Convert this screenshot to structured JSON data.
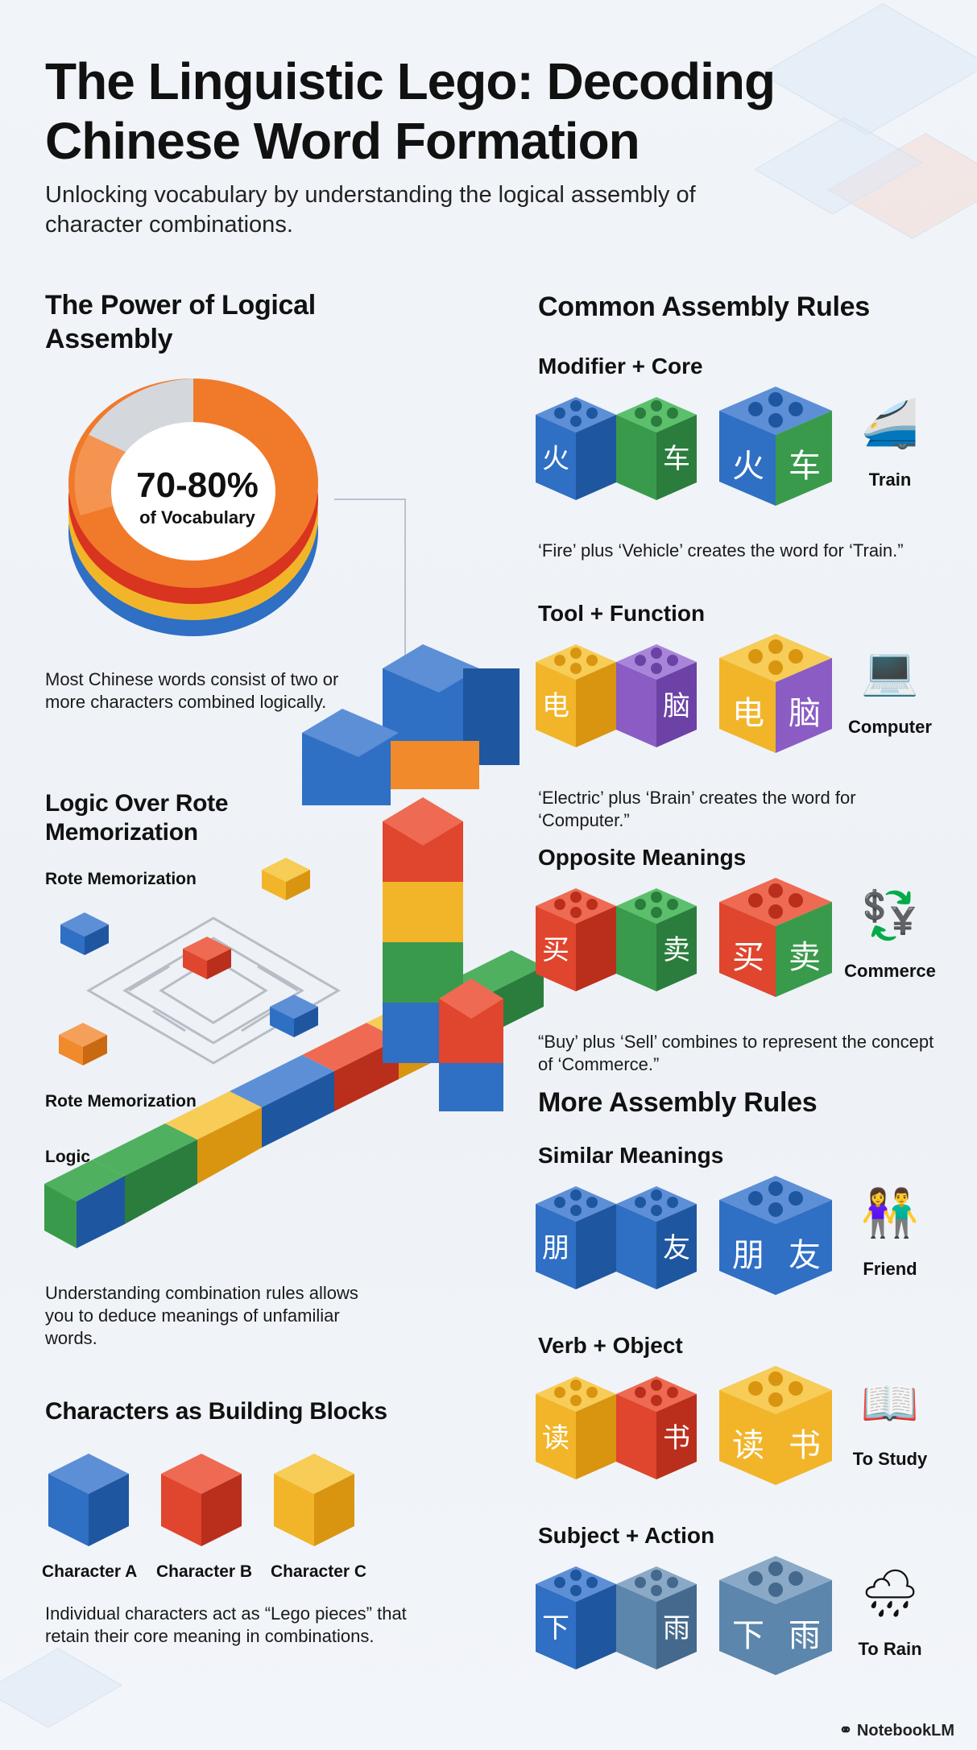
{
  "header": {
    "title": "The Linguistic Lego: Decoding Chinese Word  Formation",
    "subtitle": "Unlocking vocabulary by understanding the logical assembly of character combinations."
  },
  "left": {
    "power": {
      "heading": "The Power of Logical Assembly",
      "stat": "70-80%",
      "stat_label": "of Vocabulary",
      "caption": "Most Chinese words consist of two or more characters combined logically."
    },
    "logic": {
      "heading": "Logic Over Rote Memorization",
      "label_top": "Rote Memorization",
      "label_mid": "Rote Memorization",
      "label_logic": "Logic",
      "caption": "Understanding combination rules allows you to deduce meanings of unfamiliar words."
    },
    "blocks": {
      "heading": "Characters as Building Blocks",
      "labels": [
        "Character A",
        "Character B",
        "Character C"
      ],
      "caption": "Individual characters act as “Lego pieces” that retain their core meaning in combinations."
    }
  },
  "right": {
    "common_heading": "Common Assembly Rules",
    "more_heading": "More Assembly Rules",
    "rules": [
      {
        "name": "Modifier + Core",
        "chars": [
          "火",
          "车"
        ],
        "result": "Train",
        "caption": "‘Fire’ plus ‘Vehicle’ creates the word for ‘Train.”"
      },
      {
        "name": "Tool + Function",
        "chars": [
          "电",
          "脑"
        ],
        "result": "Computer",
        "caption": "‘Electric’ plus ‘Brain’ creates the word for ‘Computer.”"
      },
      {
        "name": "Opposite Meanings",
        "chars": [
          "买",
          "卖"
        ],
        "result": "Commerce",
        "caption": "“Buy’ plus ‘Sell’ combines to represent the concept of ‘Commerce.”"
      },
      {
        "name": "Similar Meanings",
        "chars": [
          "朋",
          "友"
        ],
        "result": "Friend",
        "caption": ""
      },
      {
        "name": "Verb + Object",
        "chars": [
          "读",
          "书"
        ],
        "result": "To Study",
        "caption": ""
      },
      {
        "name": "Subject + Action",
        "chars": [
          "下",
          "雨"
        ],
        "result": "To Rain",
        "caption": ""
      }
    ]
  },
  "footer": {
    "brand": "NotebookLM"
  },
  "colors": {
    "blue": "#2f6fc4",
    "red": "#e0452e",
    "green": "#3a9a4c",
    "yellow": "#f2b52a",
    "purple": "#8a5cc4",
    "orange": "#f08a2a",
    "slate": "#5c86ab",
    "gray": "#d4d7dc"
  },
  "icons": [
    "flame-icon",
    "car-icon",
    "train-icon",
    "lightning-icon",
    "brain-icon",
    "laptop-icon",
    "coin-hand-icon",
    "money-exchange-icon",
    "people-icon",
    "person-icon",
    "friends-icon",
    "book-icon",
    "stack-books-icon",
    "reading-child-icon",
    "down-arrow-icon",
    "rain-cloud-icon",
    "notebooklm-logo-icon"
  ]
}
